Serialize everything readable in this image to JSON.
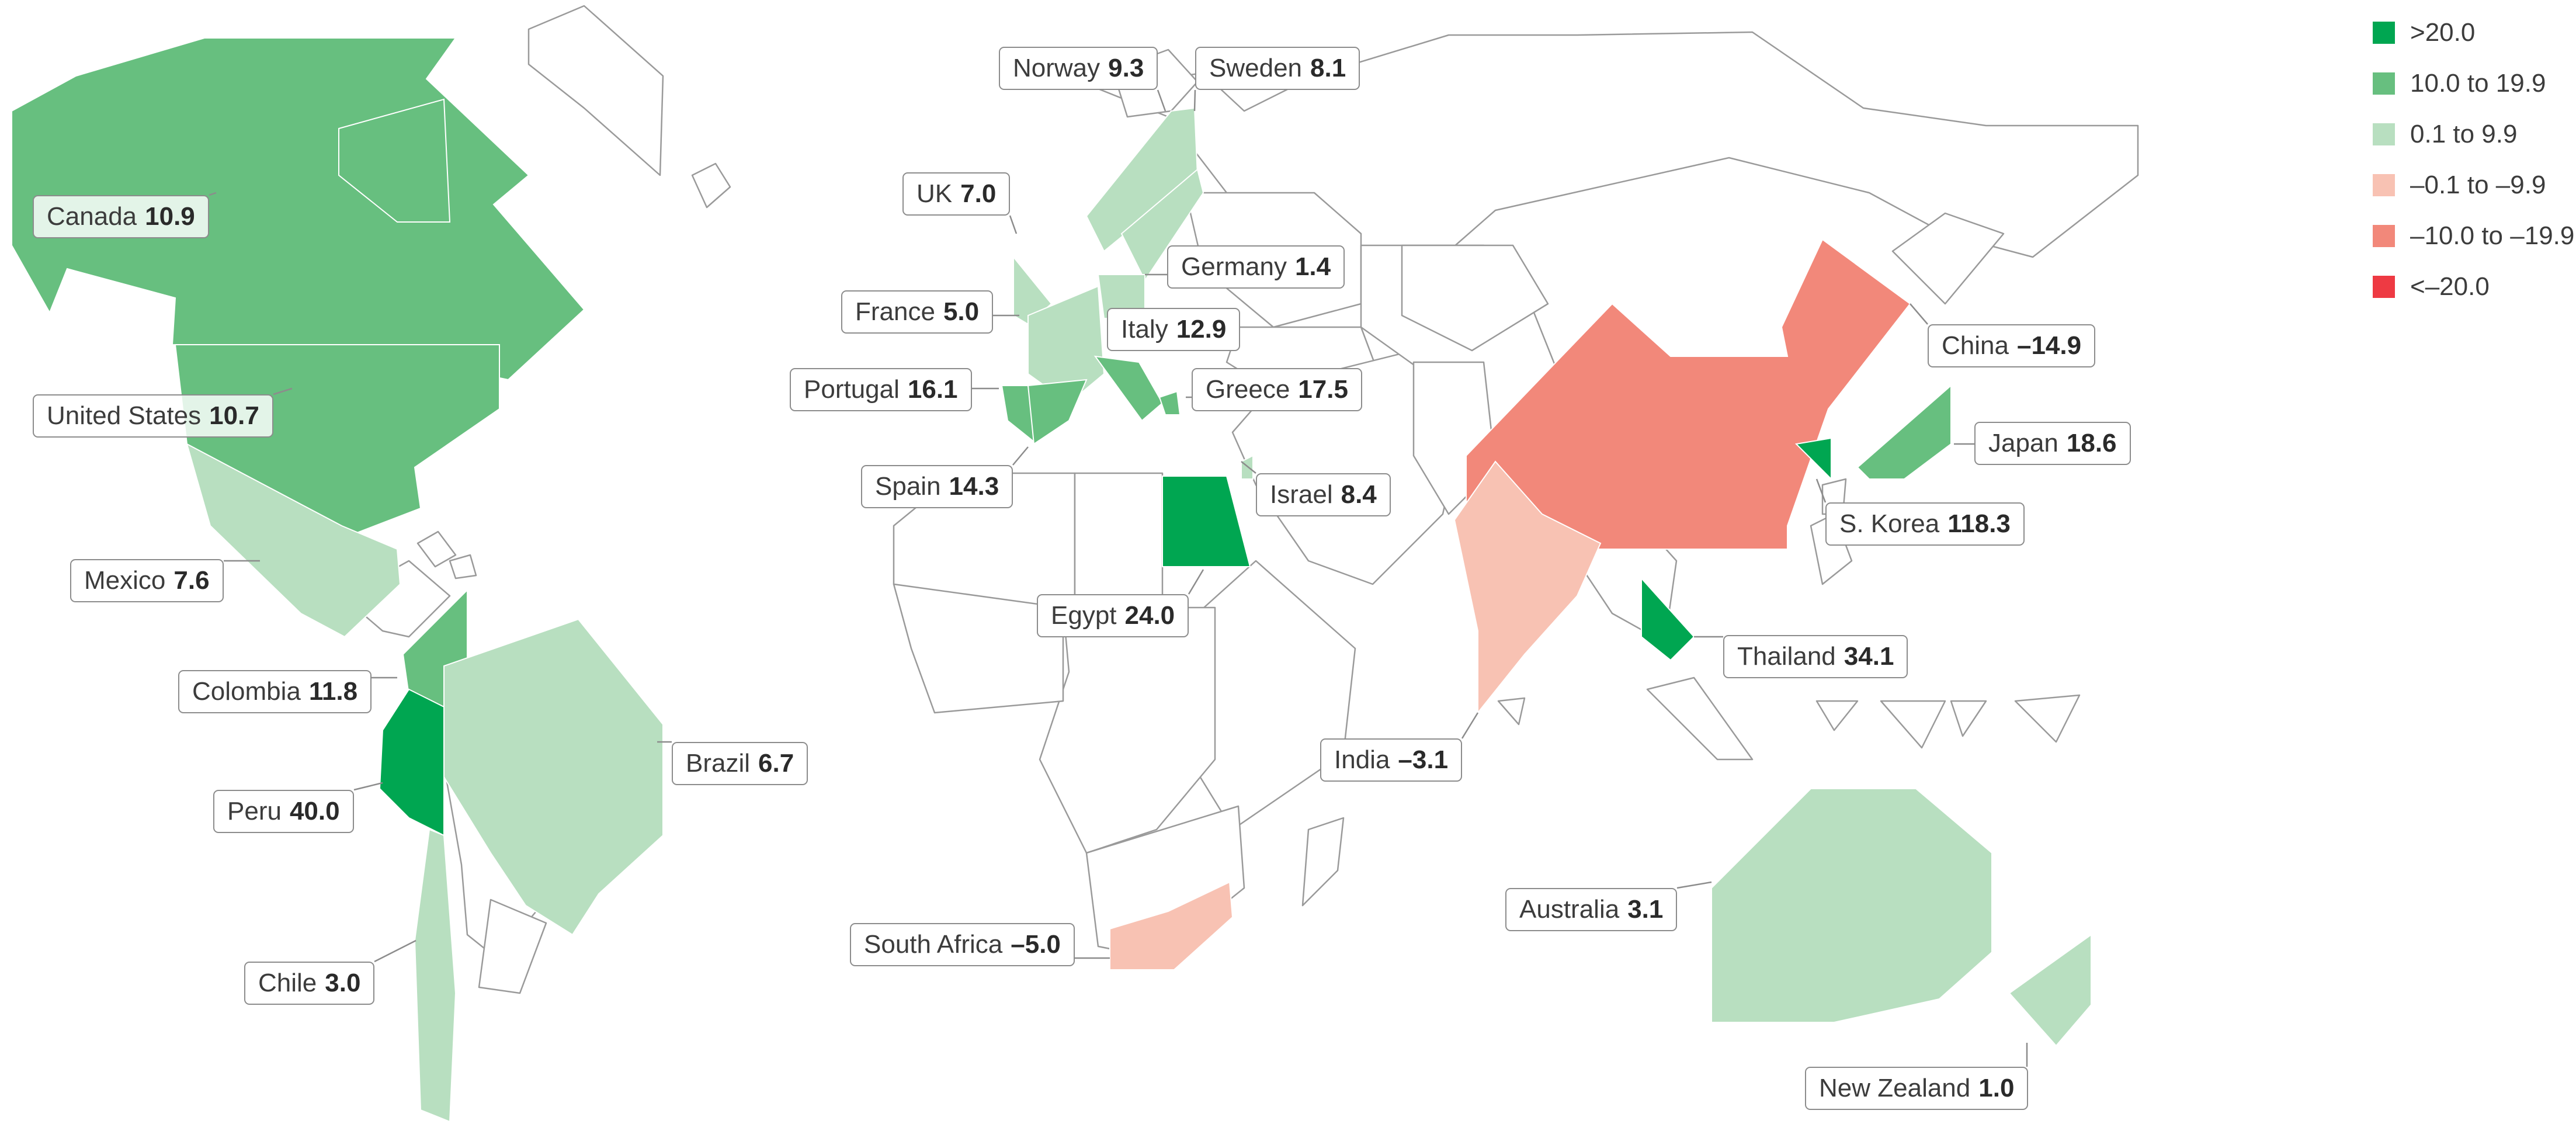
{
  "legend": {
    "items": [
      {
        "label": ">20.0",
        "color": "#00a651"
      },
      {
        "label": "10.0 to 19.9",
        "color": "#67bf7f"
      },
      {
        "label": "0.1 to 9.9",
        "color": "#b8dfc0"
      },
      {
        "label": "–0.1 to –9.9",
        "color": "#f8c2b3"
      },
      {
        "label": "–10.0 to –19.9",
        "color": "#f2887a"
      },
      {
        "label": "<–20.0",
        "color": "#ee3a43"
      }
    ]
  },
  "regions": [
    {
      "name": "Canada",
      "value": "10.9",
      "color": "#67bf7f"
    },
    {
      "name": "United States",
      "value": "10.7",
      "color": "#67bf7f"
    },
    {
      "name": "Mexico",
      "value": "7.6",
      "color": "#b8dfc0"
    },
    {
      "name": "Colombia",
      "value": "11.8",
      "color": "#67bf7f"
    },
    {
      "name": "Peru",
      "value": "40.0",
      "color": "#00a651"
    },
    {
      "name": "Brazil",
      "value": "6.7",
      "color": "#b8dfc0"
    },
    {
      "name": "Chile",
      "value": "3.0",
      "color": "#b8dfc0"
    },
    {
      "name": "Norway",
      "value": "9.3",
      "color": "#b8dfc0"
    },
    {
      "name": "Sweden",
      "value": "8.1",
      "color": "#b8dfc0"
    },
    {
      "name": "UK",
      "value": "7.0",
      "color": "#b8dfc0"
    },
    {
      "name": "Germany",
      "value": "1.4",
      "color": "#b8dfc0"
    },
    {
      "name": "France",
      "value": "5.0",
      "color": "#b8dfc0"
    },
    {
      "name": "Italy",
      "value": "12.9",
      "color": "#67bf7f"
    },
    {
      "name": "Portugal",
      "value": "16.1",
      "color": "#67bf7f"
    },
    {
      "name": "Greece",
      "value": "17.5",
      "color": "#67bf7f"
    },
    {
      "name": "Spain",
      "value": "14.3",
      "color": "#67bf7f"
    },
    {
      "name": "Israel",
      "value": "8.4",
      "color": "#b8dfc0"
    },
    {
      "name": "Egypt",
      "value": "24.0",
      "color": "#00a651"
    },
    {
      "name": "South Africa",
      "value": "–5.0",
      "color": "#f8c2b3"
    },
    {
      "name": "China",
      "value": "–14.9",
      "color": "#f2887a"
    },
    {
      "name": "Japan",
      "value": "18.6",
      "color": "#67bf7f"
    },
    {
      "name": "S. Korea",
      "value": "118.3",
      "color": "#00a651"
    },
    {
      "name": "Thailand",
      "value": "34.1",
      "color": "#00a651"
    },
    {
      "name": "India",
      "value": "–3.1",
      "color": "#f8c2b3"
    },
    {
      "name": "Australia",
      "value": "3.1",
      "color": "#b8dfc0"
    },
    {
      "name": "New Zealand",
      "value": "1.0",
      "color": "#b8dfc0"
    }
  ]
}
